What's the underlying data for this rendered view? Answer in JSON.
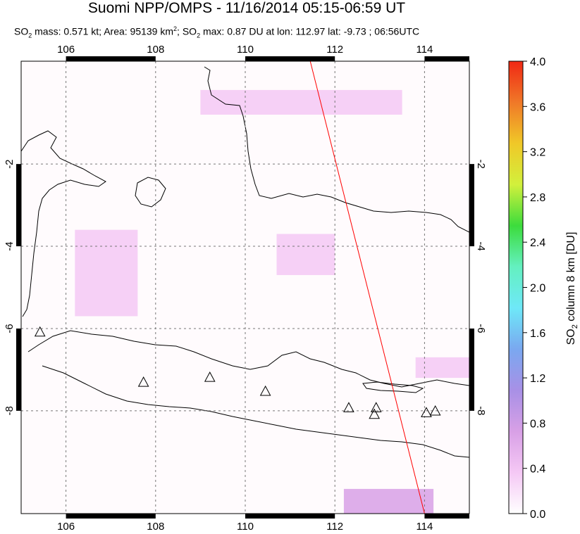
{
  "title": "Suomi NPP/OMPS - 11/16/2014 05:15-06:59 UT",
  "subtitle": {
    "mass_prefix": "SO",
    "mass_sub": "2",
    "mass_text": " mass: 0.571 kt; Area: 95139 km",
    "area_sup": "2",
    "max_prefix": "; SO",
    "max_sub": "2",
    "max_text": " max: 0.87 DU at lon: 112.97 lat: -9.73 ; 06:56UTC"
  },
  "colorbar": {
    "label_prefix": "SO",
    "label_sub": "2",
    "label_suffix": " column 8 km [DU]",
    "ticks": [
      "0.0",
      "0.4",
      "0.8",
      "1.2",
      "1.6",
      "2.0",
      "2.4",
      "2.8",
      "3.2",
      "3.6",
      "4.0"
    ],
    "colors": [
      "#ffffff",
      "#f5c8f5",
      "#d8a0e6",
      "#a890e6",
      "#7aa8f0",
      "#6ee8f8",
      "#64f0c0",
      "#3cdc3c",
      "#d2f03c",
      "#f0c828",
      "#f07828",
      "#f02814"
    ]
  },
  "chart_data": {
    "type": "heatmap",
    "title": "Suomi NPP/OMPS - 11/16/2014 05:15-06:59 UT",
    "xlabel": "",
    "ylabel": "",
    "xlim": [
      105,
      115
    ],
    "ylim": [
      -10.5,
      0.5
    ],
    "x_ticks": [
      "106",
      "108",
      "110",
      "112",
      "114"
    ],
    "y_ticks": [
      "-2",
      "-4",
      "-6",
      "-8"
    ],
    "x_tick_values": [
      106,
      108,
      110,
      112,
      114
    ],
    "y_tick_values": [
      -2,
      -4,
      -6,
      -8
    ],
    "color_range": [
      0.0,
      4.0
    ],
    "orbit_track": [
      [
        111.45,
        0.5
      ],
      [
        114.0,
        -10.5
      ]
    ],
    "volcanoes": [
      [
        105.42,
        -6.1
      ],
      [
        107.73,
        -7.32
      ],
      [
        109.21,
        -7.2
      ],
      [
        110.45,
        -7.54
      ],
      [
        112.31,
        -7.94
      ],
      [
        112.92,
        -7.94
      ],
      [
        112.88,
        -8.1
      ],
      [
        114.04,
        -8.06
      ],
      [
        114.24,
        -8.02
      ]
    ],
    "so2_patches": [
      {
        "lon": [
          109.0,
          113.5
        ],
        "lat": [
          -0.2,
          -0.8
        ],
        "value": 0.35
      },
      {
        "lon": [
          106.2,
          107.6
        ],
        "lat": [
          -3.6,
          -5.7
        ],
        "value": 0.45
      },
      {
        "lon": [
          110.7,
          112.0
        ],
        "lat": [
          -3.7,
          -4.7
        ],
        "value": 0.4
      },
      {
        "lon": [
          112.2,
          114.2
        ],
        "lat": [
          -9.9,
          -10.5
        ],
        "value": 0.75
      },
      {
        "lon": [
          113.8,
          115.0
        ],
        "lat": [
          -6.7,
          -7.2
        ],
        "value": 0.3
      }
    ]
  }
}
